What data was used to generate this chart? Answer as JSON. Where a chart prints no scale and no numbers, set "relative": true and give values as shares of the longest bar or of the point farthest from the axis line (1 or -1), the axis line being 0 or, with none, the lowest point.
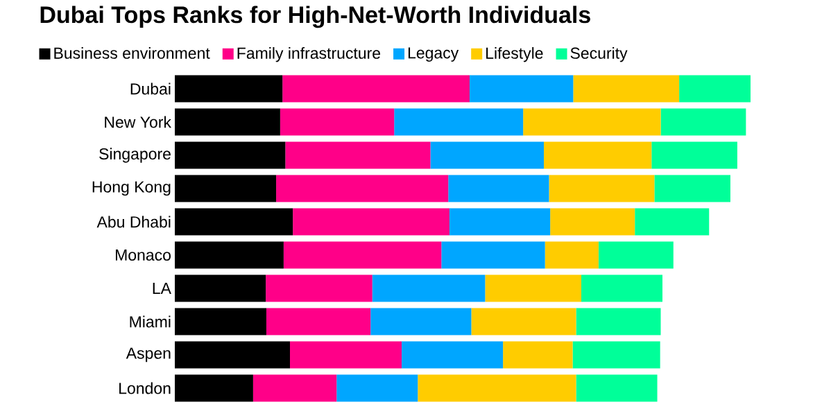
{
  "chart_data": {
    "type": "bar",
    "orientation": "horizontal",
    "stacked": true,
    "relative": true,
    "legend": "top",
    "title": "Dubai Tops Ranks for High-Net-Worth Individuals",
    "categories": [
      "Dubai",
      "New York",
      "Singapore",
      "Hong Kong",
      "Abu Dhabi",
      "Monaco",
      "LA",
      "Miami",
      "Aspen",
      "London"
    ],
    "series": [
      {
        "name": "Business environment",
        "color": "#000000",
        "values": [
          0.187,
          0.183,
          0.192,
          0.176,
          0.205,
          0.189,
          0.158,
          0.159,
          0.2,
          0.136
        ]
      },
      {
        "name": "Family infrastructure",
        "color": "#ff0088",
        "values": [
          0.325,
          0.198,
          0.252,
          0.299,
          0.272,
          0.274,
          0.185,
          0.181,
          0.194,
          0.145
        ]
      },
      {
        "name": "Legacy",
        "color": "#00a6ff",
        "values": [
          0.18,
          0.224,
          0.197,
          0.175,
          0.175,
          0.18,
          0.196,
          0.175,
          0.176,
          0.141
        ]
      },
      {
        "name": "Lifestyle",
        "color": "#ffcc00",
        "values": [
          0.184,
          0.239,
          0.187,
          0.183,
          0.147,
          0.093,
          0.167,
          0.182,
          0.121,
          0.275
        ]
      },
      {
        "name": "Security",
        "color": "#00ff99",
        "values": [
          0.124,
          0.148,
          0.149,
          0.132,
          0.129,
          0.13,
          0.141,
          0.147,
          0.152,
          0.141
        ]
      }
    ]
  }
}
